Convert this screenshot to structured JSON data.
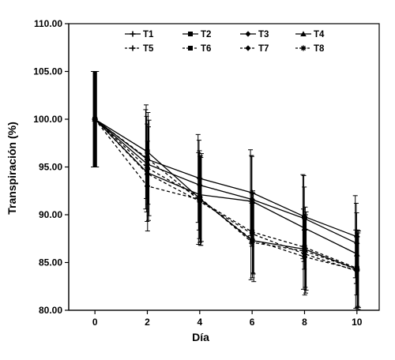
{
  "chart_data": {
    "type": "line",
    "title": "",
    "xlabel": "Día",
    "ylabel": "Transpiración  (%)",
    "x": [
      0,
      2,
      4,
      6,
      8,
      10
    ],
    "xticks": [
      "0",
      "2",
      "4",
      "6",
      "8",
      "10"
    ],
    "ylim": [
      80,
      110
    ],
    "yticks": [
      "80.00",
      "85.00",
      "90.00",
      "95.00",
      "100.00",
      "105.00",
      "110.00"
    ],
    "grid": false,
    "legend_position": "top",
    "series": [
      {
        "name": "T1",
        "line": "solid",
        "marker": "plus",
        "values": [
          100.0,
          95.8,
          93.8,
          92.3,
          89.8,
          87.7
        ],
        "errors": [
          5.0,
          5.2,
          4.6,
          4.5,
          4.4,
          4.3
        ]
      },
      {
        "name": "T2",
        "line": "solid",
        "marker": "square",
        "values": [
          100.0,
          96.6,
          91.7,
          87.3,
          86.4,
          84.3
        ],
        "errors": [
          5.0,
          4.9,
          4.8,
          4.1,
          4.2,
          4.1
        ]
      },
      {
        "name": "T3",
        "line": "solid",
        "marker": "diamond",
        "values": [
          100.0,
          95.3,
          93.1,
          91.6,
          89.6,
          87.0
        ],
        "errors": [
          5.0,
          5.0,
          4.7,
          4.6,
          4.5,
          4.2
        ]
      },
      {
        "name": "T4",
        "line": "solid",
        "marker": "triangle",
        "values": [
          100.0,
          94.4,
          92.1,
          91.4,
          88.6,
          85.9
        ],
        "errors": [
          5.0,
          5.1,
          4.6,
          4.7,
          4.3,
          4.3
        ]
      },
      {
        "name": "T5",
        "line": "dashed",
        "marker": "plus",
        "values": [
          100.0,
          93.0,
          91.6,
          87.4,
          85.6,
          84.2
        ],
        "errors": [
          5.0,
          4.7,
          4.5,
          4.0,
          4.0,
          3.9
        ]
      },
      {
        "name": "T6",
        "line": "dashed",
        "marker": "square",
        "values": [
          100.0,
          95.9,
          91.5,
          88.2,
          86.6,
          84.4
        ],
        "errors": [
          5.0,
          4.8,
          4.7,
          4.3,
          4.2,
          4.0
        ]
      },
      {
        "name": "T7",
        "line": "dashed",
        "marker": "diamond",
        "values": [
          100.0,
          94.3,
          91.4,
          88.0,
          85.9,
          84.1
        ],
        "errors": [
          5.0,
          4.9,
          4.6,
          4.2,
          4.1,
          4.0
        ]
      },
      {
        "name": "T8",
        "line": "dashed",
        "marker": "star",
        "values": [
          100.0,
          94.9,
          91.8,
          87.1,
          86.2,
          84.3
        ],
        "errors": [
          5.0,
          5.0,
          4.6,
          4.1,
          4.1,
          4.0
        ]
      }
    ]
  }
}
